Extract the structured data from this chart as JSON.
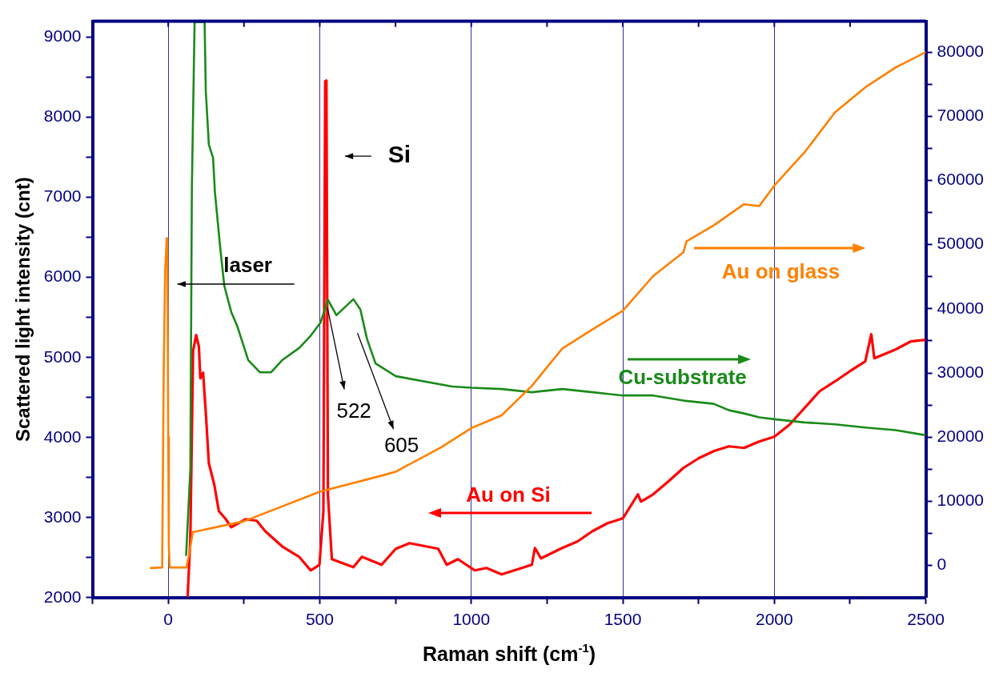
{
  "chart_data": {
    "type": "line",
    "xlabel": "Raman shift (cm$^{-1}$)",
    "ylabel": "Scattered light intensity (cnt)",
    "xlim": [
      -250,
      2500
    ],
    "xticks": [
      {
        "value": -250,
        "label": null
      },
      0,
      {
        "value": 250,
        "label": null
      },
      500,
      {
        "value": 750,
        "label": null
      },
      1000,
      {
        "value": 1250,
        "label": null
      },
      1500,
      {
        "value": 1750,
        "label": null
      },
      2000,
      {
        "value": 2250,
        "label": null
      },
      2500
    ],
    "ylim": [
      2000,
      9200
    ],
    "yticks": [
      2000,
      {
        "value": 2500,
        "label": null
      },
      3000,
      {
        "value": 3500,
        "label": null
      },
      4000,
      {
        "value": 4500,
        "label": null
      },
      5000,
      {
        "value": 5500,
        "label": null
      },
      6000,
      {
        "value": 6500,
        "label": null
      },
      7000,
      {
        "value": 7500,
        "label": null
      },
      8000,
      {
        "value": 8500,
        "label": null
      },
      9000
    ],
    "y2lim": [
      -5000,
      84800
    ],
    "y2ticks": [
      0,
      {
        "value": 5000,
        "label": null
      },
      10000,
      {
        "value": 15000,
        "label": null
      },
      20000,
      {
        "value": 25000,
        "label": null
      },
      30000,
      {
        "value": 35000,
        "label": null
      },
      40000,
      {
        "value": 45000,
        "label": null
      },
      50000,
      {
        "value": 55000,
        "label": null
      },
      60000,
      {
        "value": 65000,
        "label": null
      },
      70000,
      {
        "value": 75000,
        "label": null
      },
      80000
    ],
    "grid": "x",
    "legend": "right",
    "marker": "none",
    "line_style": "solid",
    "series": [
      {
        "name": "Au on glass",
        "axis": "y2",
        "color": "#ff8000",
        "x": [
          -60,
          -20,
          -15,
          -10,
          -5,
          -3,
          0,
          2,
          5,
          60,
          70,
          81,
          250,
          500,
          712,
          750,
          900,
          1000,
          1100,
          1200,
          1300,
          1400,
          1500,
          1600,
          1700,
          1710,
          1800,
          1900,
          1950,
          2000,
          2100,
          2200,
          2300,
          2400,
          2500
        ],
        "values": [
          -400,
          -300,
          30000,
          46000,
          51000,
          51000,
          20000,
          3000,
          -300,
          -300,
          2000,
          5200,
          6900,
          11500,
          14100,
          14600,
          18400,
          21400,
          23400,
          28000,
          33800,
          36800,
          39700,
          45100,
          48800,
          50500,
          53000,
          56300,
          56000,
          59200,
          64400,
          70600,
          74500,
          77600,
          80000
        ]
      },
      {
        "name": "Cu-substrate",
        "axis": "y2",
        "color": "#1a8a1a",
        "x": [
          59,
          73,
          78,
          87,
          100,
          115,
          120,
          124,
          134,
          148,
          154,
          171,
          185,
          208,
          227,
          236,
          264,
          303,
          339,
          376,
          432,
          470,
          502,
          527,
          555,
          611,
          634,
          656,
          684,
          751,
          937,
          1000,
          1100,
          1200,
          1300,
          1400,
          1500,
          1600,
          1700,
          1800,
          1850,
          1900,
          1950,
          2000,
          2100,
          2200,
          2300,
          2400,
          2500
        ],
        "values": [
          1500,
          15000,
          58800,
          84700,
          84700,
          84700,
          84700,
          73900,
          65600,
          63500,
          58200,
          49800,
          43600,
          39500,
          37400,
          36100,
          32000,
          30100,
          30100,
          32000,
          33900,
          35800,
          37800,
          41400,
          39000,
          41500,
          39900,
          35300,
          31500,
          29500,
          27900,
          27700,
          27500,
          27000,
          27500,
          27000,
          26500,
          26500,
          25700,
          25200,
          24200,
          23700,
          23100,
          22800,
          22300,
          22000,
          21500,
          21100,
          20300
        ]
      },
      {
        "name": "Au on Si",
        "axis": "y",
        "color": "#ff0000",
        "x": [
          64,
          73,
          82,
          92,
          101,
          106,
          115,
          124,
          134,
          152,
          167,
          190,
          208,
          255,
          292,
          320,
          376,
          432,
          470,
          499,
          512,
          518,
          522,
          527,
          540,
          611,
          639,
          704,
          751,
          796,
          891,
          919,
          956,
          1012,
          1050,
          1100,
          1150,
          1200,
          1210,
          1230,
          1300,
          1350,
          1400,
          1450,
          1500,
          1550,
          1560,
          1600,
          1650,
          1700,
          1750,
          1800,
          1850,
          1900,
          1950,
          2000,
          2050,
          2100,
          2150,
          2200,
          2250,
          2300,
          2320,
          2330,
          2400,
          2450,
          2500
        ],
        "values": [
          2010,
          2740,
          5080,
          5280,
          5140,
          4740,
          4810,
          4310,
          3680,
          3410,
          3080,
          2980,
          2880,
          2980,
          2960,
          2830,
          2640,
          2510,
          2340,
          2410,
          3080,
          8450,
          8460,
          3280,
          2480,
          2380,
          2510,
          2410,
          2610,
          2680,
          2610,
          2410,
          2480,
          2340,
          2370,
          2290,
          2350,
          2410,
          2620,
          2490,
          2620,
          2700,
          2830,
          2930,
          2990,
          3290,
          3200,
          3290,
          3450,
          3620,
          3740,
          3830,
          3890,
          3870,
          3950,
          4010,
          4160,
          4370,
          4580,
          4700,
          4830,
          4950,
          5290,
          4990,
          5100,
          5200,
          5220
        ]
      }
    ],
    "annotations": [
      "laser",
      "Si",
      "522",
      "605"
    ]
  }
}
